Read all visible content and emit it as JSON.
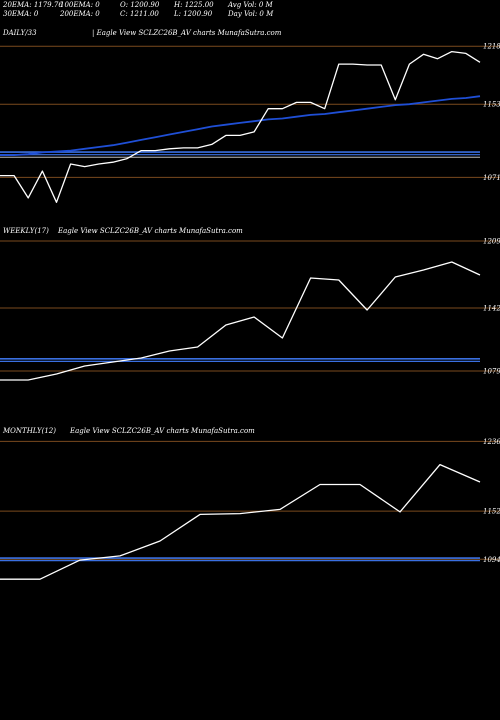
{
  "header": {
    "row1": {
      "ema20": "20EMA: 1179.76",
      "ema100": "100EMA: 0",
      "open": "O: 1200.90",
      "high": "H: 1225.00",
      "avg_vol": "Avg Vol: 0  M"
    },
    "row2": {
      "ema30": "30EMA: 0",
      "ema200": "200EMA: 0",
      "close": "C: 1211.00",
      "low": "L: 1200.90",
      "day_vol": "Day Vol: 0  M"
    }
  },
  "colors": {
    "background": "#000000",
    "price_line": "#ffffff",
    "ema_line": "#1f4fd6",
    "level_line": "#7a4a1e",
    "band_line": "#3a6fe0"
  },
  "chart_data": [
    {
      "type": "line",
      "label": "DAILY/33",
      "caption": "| Eagle   View  SCLZC26B_AV charts MunafaSutra.com",
      "yticks": [
        1218,
        1153,
        1071
      ],
      "price": [
        1073,
        1073,
        1048,
        1078,
        1043,
        1086,
        1083,
        1086,
        1088,
        1092,
        1101,
        1101,
        1103,
        1104,
        1104,
        1108,
        1118,
        1118,
        1122,
        1148,
        1148,
        1155,
        1155,
        1148,
        1198,
        1198,
        1197,
        1197,
        1158,
        1198,
        1209,
        1204,
        1212,
        1210,
        1200
      ],
      "ema": [
        1096,
        1096,
        1097,
        1099,
        1100,
        1101,
        1103,
        1105,
        1107,
        1110,
        1113,
        1116,
        1119,
        1122,
        1125,
        1128,
        1130,
        1132,
        1134,
        1136,
        1137,
        1139,
        1141,
        1142,
        1144,
        1146,
        1148,
        1150,
        1152,
        1153,
        1155,
        1157,
        1159,
        1160,
        1162
      ],
      "band": 1098
    },
    {
      "type": "line",
      "label": "WEEKLY(17)",
      "caption": "Eagle   View  SCLZC26B_AV charts MunafaSutra.com",
      "yticks": [
        1209,
        1142,
        1079
      ],
      "price": [
        1070,
        1070,
        1076,
        1084,
        1088,
        1092,
        1099,
        1103,
        1125,
        1133,
        1112,
        1172,
        1170,
        1140,
        1173,
        1180,
        1188,
        1175
      ],
      "band": 1090
    },
    {
      "type": "line",
      "label": "MONTHLY(12)",
      "caption": "Eagle   View  SCLZC26B_AV charts MunafaSutra.com",
      "yticks": [
        1236,
        1152,
        1094
      ],
      "price": [
        1070,
        1070,
        1093,
        1098,
        1116,
        1148,
        1149,
        1154,
        1184,
        1184,
        1151,
        1208,
        1187
      ],
      "band": 1094
    }
  ]
}
